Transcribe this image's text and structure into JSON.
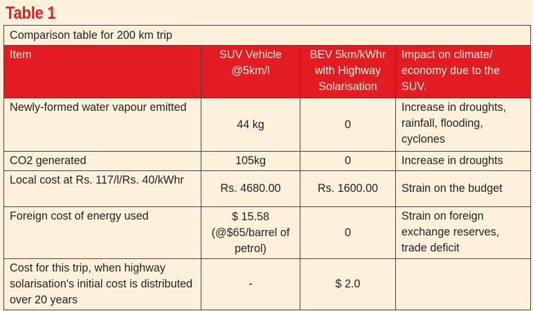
{
  "heading": "Table 1",
  "caption": "Comparison table for 200 km trip",
  "columns": [
    "Item",
    "SUV Vehicle @5km/l",
    "BEV 5km/kWhr with Highway Solarisation",
    "Impact on climate/ economy due to the SUV."
  ],
  "rows": [
    [
      "Newly-formed water vapour emitted",
      "44 kg",
      "0",
      "Increase in droughts, rainfall, flooding, cyclones"
    ],
    [
      "CO2 generated",
      "105kg",
      "0",
      "Increase in droughts"
    ],
    [
      "Local cost at Rs. 117/l/Rs. 40/kWhr",
      "Rs. 4680.00",
      "Rs. 1600.00",
      "Strain on the budget"
    ],
    [
      "Foreign cost of energy used",
      "$ 15.58 (@$65/barrel of petrol)",
      "0",
      "Strain on foreign exchange reserves, trade deficit"
    ],
    [
      "Cost for this trip, when highway solarisation's initial cost is distributed over 20 years",
      "-",
      "$ 2.0",
      ""
    ]
  ],
  "colors": {
    "accent": "#e31b23",
    "background": "#fdf1dc",
    "text": "#231f20"
  }
}
